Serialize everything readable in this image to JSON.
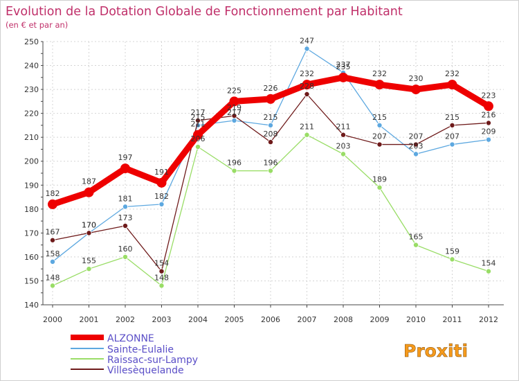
{
  "chart_data": {
    "type": "line",
    "title": "Evolution de la Dotation Globale de Fonctionnement par Habitant",
    "subtitle": "(en € et par an)",
    "xlabel": "",
    "ylabel": "",
    "ylim": [
      140,
      250
    ],
    "yticks": [
      140,
      150,
      160,
      170,
      180,
      190,
      200,
      210,
      220,
      230,
      240,
      250
    ],
    "categories": [
      "2000",
      "2001",
      "2002",
      "2003",
      "2004",
      "2005",
      "2006",
      "2007",
      "2008",
      "2009",
      "2010",
      "2011",
      "2012"
    ],
    "grid": true,
    "legend_position": "bottom-left",
    "series": [
      {
        "name": "ALZONNE",
        "color": "#ee0000",
        "values": [
          182,
          187,
          197,
          191,
          211,
          225,
          226,
          232,
          235,
          232,
          230,
          232,
          223
        ]
      },
      {
        "name": "Sainte-Eulalie",
        "color": "#5da8e0",
        "values": [
          158,
          170,
          181,
          182,
          215,
          217,
          215,
          247,
          237,
          215,
          203,
          207,
          209
        ]
      },
      {
        "name": "Raissac-sur-Lampy",
        "color": "#99dd66",
        "values": [
          148,
          155,
          160,
          148,
          206,
          196,
          196,
          211,
          203,
          189,
          165,
          159,
          154
        ]
      },
      {
        "name": "Villesèquelande",
        "color": "#6e1a1a",
        "values": [
          167,
          170,
          173,
          154,
          217,
          219,
          208,
          228,
          211,
          207,
          207,
          215,
          216
        ]
      }
    ],
    "title_color": "#c0306a",
    "label_color": "#333333"
  },
  "logo": {
    "text": "Proxiti"
  }
}
